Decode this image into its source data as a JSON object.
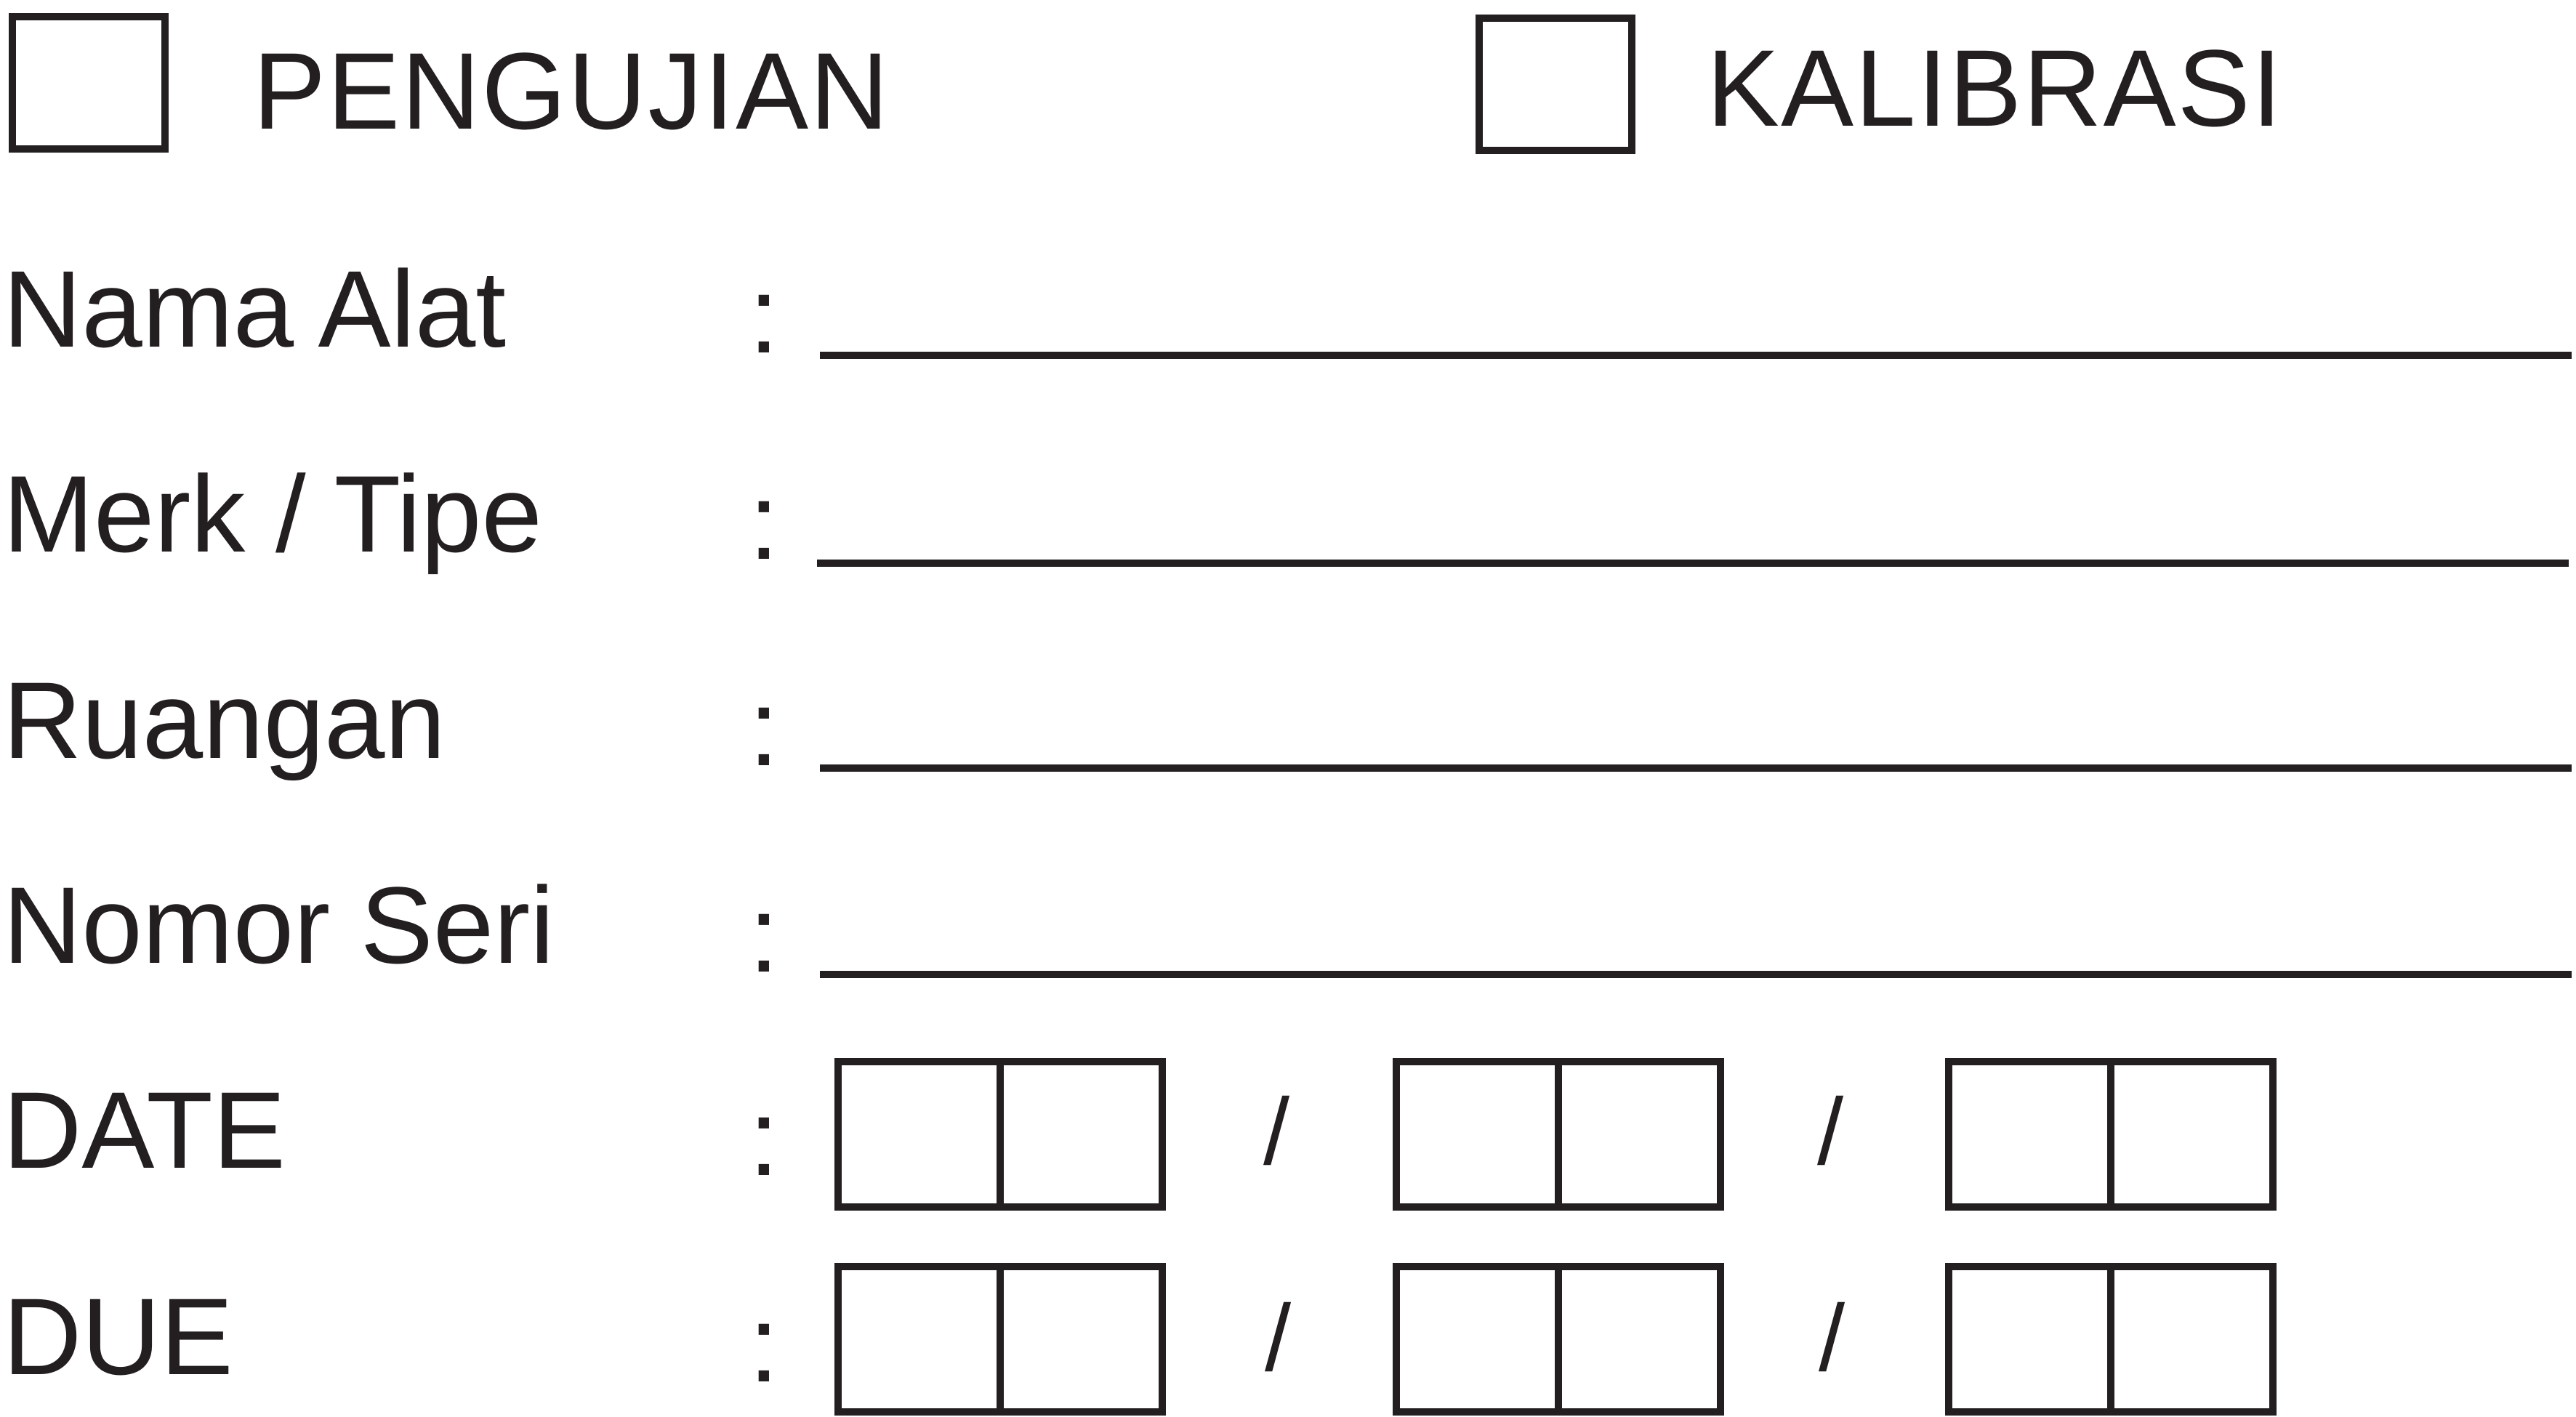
{
  "options": {
    "pengujian": {
      "label": "PENGUJIAN",
      "checked": false
    },
    "kalibrasi": {
      "label": "KALIBRASI",
      "checked": false
    }
  },
  "fields": [
    {
      "label": "Nama Alat",
      "separator": ":",
      "value": ""
    },
    {
      "label": "Merk / Tipe",
      "separator": ":",
      "value": ""
    },
    {
      "label": "Ruangan",
      "separator": ":",
      "value": ""
    },
    {
      "label": "Nomor Seri",
      "separator": ":",
      "value": ""
    }
  ],
  "dates": [
    {
      "label": "DATE",
      "separator": ":",
      "divider": "/",
      "day": "",
      "month": "",
      "year": ""
    },
    {
      "label": "DUE",
      "separator": ":",
      "divider": "/",
      "day": "",
      "month": "",
      "year": ""
    }
  ],
  "colors": {
    "ink": "#231f20",
    "paper": "#ffffff"
  }
}
